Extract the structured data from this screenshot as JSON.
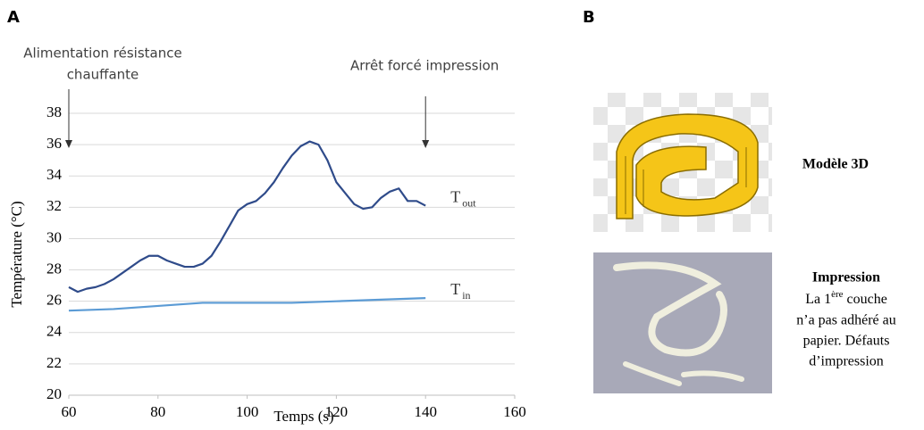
{
  "chart_data": {
    "type": "line",
    "panel_label": "A",
    "x_label": "Temps (s)",
    "y_label": "Température (°C)",
    "xlim": [
      60,
      160
    ],
    "xticks": [
      60,
      80,
      100,
      120,
      140,
      160
    ],
    "ylim": [
      20,
      38
    ],
    "yticks": [
      20,
      22,
      24,
      26,
      28,
      30,
      32,
      34,
      36,
      38
    ],
    "grid": true,
    "annotations": [
      {
        "x": 60,
        "lines": [
          "Alimentation résistance",
          "chauffante"
        ]
      },
      {
        "x": 140,
        "lines": [
          "Arrêt forcé impression"
        ]
      }
    ],
    "series": [
      {
        "name": "T",
        "subscript": "out",
        "color": "#2f4b8a",
        "x": [
          60,
          62,
          64,
          66,
          68,
          70,
          72,
          74,
          76,
          78,
          80,
          82,
          84,
          86,
          88,
          90,
          92,
          94,
          96,
          98,
          100,
          102,
          104,
          106,
          108,
          110,
          112,
          114,
          116,
          118,
          120,
          122,
          124,
          126,
          128,
          130,
          132,
          134,
          136,
          138,
          140
        ],
        "values": [
          26.9,
          26.6,
          26.8,
          26.9,
          27.1,
          27.4,
          27.8,
          28.2,
          28.6,
          28.9,
          28.9,
          28.6,
          28.4,
          28.2,
          28.2,
          28.4,
          28.9,
          29.8,
          30.8,
          31.8,
          32.2,
          32.4,
          32.9,
          33.6,
          34.5,
          35.3,
          35.9,
          36.2,
          36.0,
          35.0,
          33.6,
          32.9,
          32.2,
          31.9,
          32.0,
          32.6,
          33.0,
          33.2,
          32.4,
          32.4,
          32.1
        ]
      },
      {
        "name": "T",
        "subscript": "in",
        "color": "#5b9bd5",
        "x": [
          60,
          70,
          80,
          90,
          100,
          110,
          120,
          130,
          140
        ],
        "values": [
          25.4,
          25.5,
          25.7,
          25.9,
          25.9,
          25.9,
          26.0,
          26.1,
          26.2
        ]
      }
    ]
  },
  "panel_b": {
    "panel_label": "B",
    "model_caption": "Modèle 3D",
    "print_title": "Impression",
    "print_first_line": {
      "text": "La 1",
      "sup": "ère",
      "rest": " couche"
    },
    "print_lines": [
      "n’a pas adhéré au",
      "papier.  Défauts",
      "d’impression"
    ]
  }
}
